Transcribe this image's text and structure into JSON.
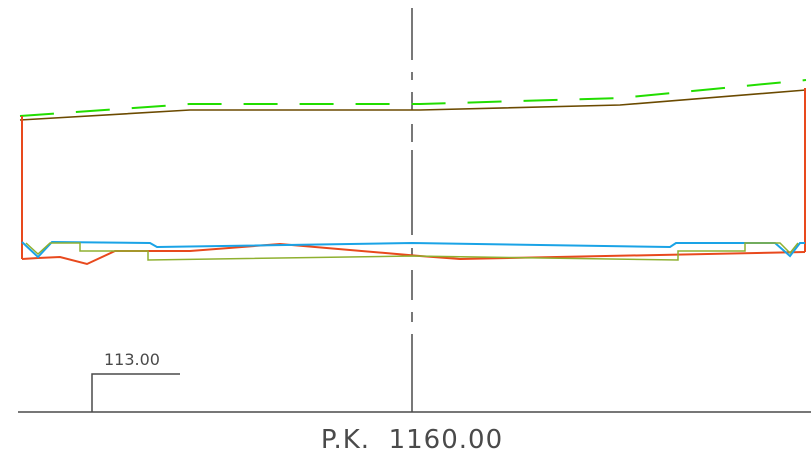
{
  "drawing": {
    "type": "road cross-section",
    "reference_level_label": "113.00",
    "station_label": "P.K.  1160.00"
  },
  "colors": {
    "background": "#ffffff",
    "axis_line": "#4a4a4a",
    "terrain_dashed": "#22dd00",
    "subgrade_top": "#6b4a00",
    "section_outline": "#e8491d",
    "pavement_surface": "#1aa3e6",
    "pavement_base": "#8fb030"
  }
}
